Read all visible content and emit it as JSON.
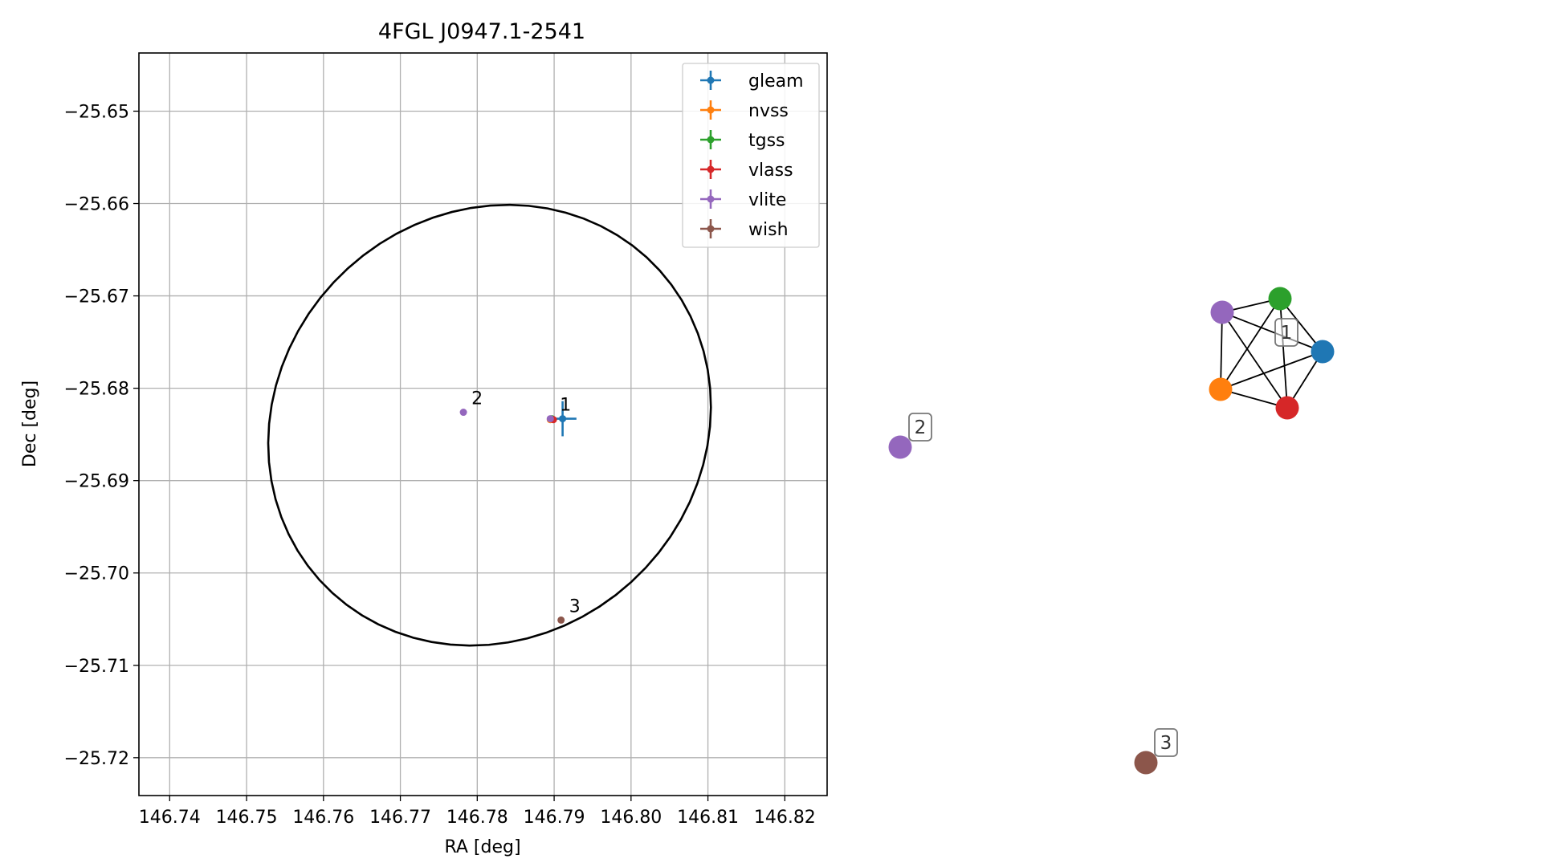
{
  "chart_data": [
    {
      "type": "scatter",
      "title": "4FGL J0947.1-2541",
      "xlabel": "RA [deg]",
      "ylabel": "Dec [deg]",
      "xlim": [
        146.736,
        146.8255
      ],
      "ylim": [
        -25.7241,
        -25.6437
      ],
      "xticks": [
        146.74,
        146.75,
        146.76,
        146.77,
        146.78,
        146.79,
        146.8,
        146.81,
        146.82
      ],
      "xtick_labels": [
        "146.74",
        "146.75",
        "146.76",
        "146.77",
        "146.78",
        "146.79",
        "146.80",
        "146.81",
        "146.82"
      ],
      "yticks": [
        -25.65,
        -25.66,
        -25.67,
        -25.68,
        -25.69,
        -25.7,
        -25.71,
        -25.72
      ],
      "ytick_labels": [
        "−25.65",
        "−25.66",
        "−25.67",
        "−25.68",
        "−25.69",
        "−25.70",
        "−25.71",
        "−25.72"
      ],
      "grid": true,
      "legend_position": "top-right",
      "ellipse": {
        "center_ra": 146.7816,
        "center_dec": -25.684,
        "semi_axis_ra_deg": 0.029,
        "semi_axis_dec_deg": 0.0236,
        "angle_deg": 12,
        "color": "#000000"
      },
      "series": [
        {
          "name": "gleam",
          "color": "#1f77b4",
          "points": [
            {
              "ra": 146.7911,
              "dec": -25.6833,
              "err_ra": 0.0018,
              "err_dec": 0.0019
            }
          ]
        },
        {
          "name": "nvss",
          "color": "#ff7f0e",
          "points": [
            {
              "ra": 146.7895,
              "dec": -25.6834,
              "err_ra": 0.0003,
              "err_dec": 0.0003
            }
          ]
        },
        {
          "name": "tgss",
          "color": "#2ca02c",
          "points": [
            {
              "ra": 146.7897,
              "dec": -25.6833,
              "err_ra": 0.0002,
              "err_dec": 0.0002
            }
          ]
        },
        {
          "name": "vlass",
          "color": "#d62728",
          "points": [
            {
              "ra": 146.7899,
              "dec": -25.6834,
              "err_ra": 0.0001,
              "err_dec": 0.0001
            }
          ]
        },
        {
          "name": "vlite",
          "color": "#9467bd",
          "points": [
            {
              "ra": 146.7895,
              "dec": -25.6833,
              "err_ra": 0.0003,
              "err_dec": 0.0003
            },
            {
              "ra": 146.7782,
              "dec": -25.6826,
              "err_ra": 0.0003,
              "err_dec": 0.0003
            }
          ]
        },
        {
          "name": "wish",
          "color": "#8c564b",
          "points": [
            {
              "ra": 146.7909,
              "dec": -25.7051,
              "err_ra": 0.0003,
              "err_dec": 0.0003
            }
          ]
        }
      ],
      "annotations": [
        {
          "text": "1",
          "ra": 146.7897,
          "dec": -25.6833
        },
        {
          "text": "2",
          "ra": 146.7782,
          "dec": -25.6826
        },
        {
          "text": "3",
          "ra": 146.7909,
          "dec": -25.7051
        }
      ]
    },
    {
      "type": "network",
      "nodes": [
        {
          "id": "gleam",
          "color": "#1f77b4",
          "group": "1"
        },
        {
          "id": "tgss",
          "color": "#2ca02c",
          "group": "1"
        },
        {
          "id": "vlite-1",
          "color": "#9467bd",
          "group": "1"
        },
        {
          "id": "nvss",
          "color": "#ff7f0e",
          "group": "1"
        },
        {
          "id": "vlass",
          "color": "#d62728",
          "group": "1"
        },
        {
          "id": "vlite-2",
          "color": "#9467bd",
          "group": "2"
        },
        {
          "id": "wish",
          "color": "#8c564b",
          "group": "3"
        }
      ],
      "edges": [
        [
          "gleam",
          "tgss"
        ],
        [
          "gleam",
          "vlite-1"
        ],
        [
          "gleam",
          "nvss"
        ],
        [
          "gleam",
          "vlass"
        ],
        [
          "tgss",
          "vlite-1"
        ],
        [
          "tgss",
          "nvss"
        ],
        [
          "tgss",
          "vlass"
        ],
        [
          "vlite-1",
          "nvss"
        ],
        [
          "vlite-1",
          "vlass"
        ],
        [
          "nvss",
          "vlass"
        ]
      ],
      "group_labels": [
        "1",
        "2",
        "3"
      ]
    }
  ]
}
